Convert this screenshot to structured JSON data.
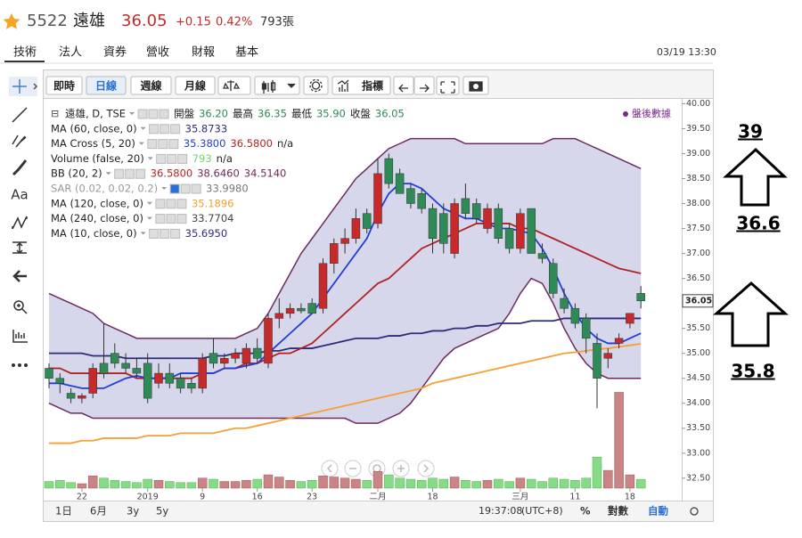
{
  "header": {
    "code": "5522",
    "name": "遠雄",
    "price": "36.05",
    "change": "+0.15",
    "percent": "0.42%",
    "volume": "793張"
  },
  "tabs": [
    "技術",
    "法人",
    "資券",
    "營收",
    "財報",
    "基本"
  ],
  "timestamp": "03/19 13:30",
  "toolbar": {
    "periods": [
      "即時",
      "日線",
      "週線",
      "月線"
    ],
    "indicator": "指標"
  },
  "sidebar": {
    "text_tool": "Aa"
  },
  "chart": {
    "type": "candlestick",
    "after_hours": "盤後數據",
    "up_color": "#c62a2a",
    "down_color": "#2f8a57",
    "legend": [
      {
        "label": "遠雄, D, TSE",
        "items": [
          {
            "text": "開盤",
            "color": "#222"
          },
          {
            "text": "36.20",
            "color": "#2f8a57"
          },
          {
            "text": "最高",
            "color": "#222"
          },
          {
            "text": "36.35",
            "color": "#2f8a57"
          },
          {
            "text": "最低",
            "color": "#222"
          },
          {
            "text": "35.90",
            "color": "#2f8a57"
          },
          {
            "text": "收盤",
            "color": "#222"
          },
          {
            "text": "36.05",
            "color": "#2f8a57"
          }
        ]
      },
      {
        "label": "MA (60, close, 0)",
        "items": [
          {
            "text": "35.8733",
            "color": "#2c2c7a"
          }
        ]
      },
      {
        "label": "MA Cross (5, 20)",
        "items": [
          {
            "text": "35.3800",
            "color": "#1f3fd6"
          },
          {
            "text": "36.5800",
            "color": "#b22222"
          },
          {
            "text": "n/a",
            "color": "#222"
          }
        ]
      },
      {
        "label": "Volume (false, 20)",
        "items": [
          {
            "text": "793",
            "color": "#6fd66f"
          },
          {
            "text": "n/a",
            "color": "#222"
          }
        ]
      },
      {
        "label": "BB (20, 2)",
        "items": [
          {
            "text": "36.5800",
            "color": "#b22222"
          },
          {
            "text": "38.6460",
            "color": "#6d2a5e"
          },
          {
            "text": "34.5140",
            "color": "#6d2a5e"
          }
        ]
      },
      {
        "label": "SAR (0.02, 0.02, 0.2)",
        "items": [
          {
            "text": "33.9980",
            "color": "#777"
          }
        ]
      },
      {
        "label": "MA (120, close, 0)",
        "items": [
          {
            "text": "35.1896",
            "color": "#f5a033"
          }
        ]
      },
      {
        "label": "MA (240, close, 0)",
        "items": [
          {
            "text": "33.7704",
            "color": "#444"
          }
        ]
      },
      {
        "label": "MA (10, close, 0)",
        "items": [
          {
            "text": "35.6950",
            "color": "#2c2c7a"
          }
        ]
      }
    ],
    "ylim": [
      32.3,
      40.15
    ],
    "yticks": [
      {
        "value": 32.5,
        "label": "32.50"
      },
      {
        "value": 33,
        "label": "33.00"
      },
      {
        "value": 33.5,
        "label": "33.50"
      },
      {
        "value": 34,
        "label": "34.00"
      },
      {
        "value": 34.5,
        "label": "34.50"
      },
      {
        "value": 35,
        "label": "35.00"
      },
      {
        "value": 35.5,
        "label": "35.50"
      },
      {
        "value": 36,
        "label": "36.00"
      },
      {
        "value": 36.5,
        "label": "36.50"
      },
      {
        "value": 37,
        "label": "37.00"
      },
      {
        "value": 37.5,
        "label": "37.50"
      },
      {
        "value": 38,
        "label": "38.00"
      },
      {
        "value": 38.5,
        "label": "38.50"
      },
      {
        "value": 39,
        "label": "39.00"
      },
      {
        "value": 39.5,
        "label": "39.50"
      },
      {
        "value": 40,
        "label": "40.00"
      }
    ],
    "price_tag": {
      "value": 36.05,
      "label": "36.05"
    },
    "categories": [
      null,
      null,
      null,
      "22",
      null,
      null,
      null,
      null,
      null,
      "2019",
      null,
      null,
      null,
      null,
      "9",
      null,
      null,
      null,
      null,
      "16",
      null,
      null,
      null,
      null,
      "23",
      null,
      null,
      null,
      null,
      null,
      "二月",
      null,
      null,
      null,
      null,
      "18",
      null,
      null,
      null,
      null,
      null,
      null,
      null,
      "三月",
      null,
      null,
      null,
      null,
      "11",
      null,
      null,
      null,
      null,
      "18",
      null
    ],
    "candles": [
      [
        34.7,
        34.8,
        34.3,
        34.5
      ],
      [
        34.5,
        34.6,
        34.2,
        34.4
      ],
      [
        34.2,
        34.3,
        34.0,
        34.1
      ],
      [
        34.1,
        34.2,
        34.0,
        34.15
      ],
      [
        34.2,
        34.8,
        34.1,
        34.7
      ],
      [
        34.8,
        35.6,
        34.5,
        34.6
      ],
      [
        35.0,
        35.2,
        34.7,
        34.8
      ],
      [
        34.8,
        35.0,
        34.6,
        34.7
      ],
      [
        34.7,
        34.9,
        34.5,
        34.6
      ],
      [
        34.8,
        35.0,
        34.0,
        34.1
      ],
      [
        34.4,
        34.8,
        34.3,
        34.6
      ],
      [
        34.6,
        34.8,
        34.3,
        34.4
      ],
      [
        34.5,
        34.6,
        34.2,
        34.3
      ],
      [
        34.4,
        34.5,
        34.2,
        34.3
      ],
      [
        34.3,
        35.0,
        34.2,
        34.9
      ],
      [
        35.0,
        35.3,
        34.7,
        34.8
      ],
      [
        34.8,
        35.0,
        34.7,
        34.9
      ],
      [
        34.9,
        35.1,
        34.8,
        35.0
      ],
      [
        34.8,
        35.2,
        34.7,
        35.1
      ],
      [
        35.1,
        35.3,
        34.8,
        34.9
      ],
      [
        34.8,
        35.8,
        34.7,
        35.7
      ],
      [
        35.7,
        36.1,
        35.5,
        35.8
      ],
      [
        35.8,
        36.0,
        35.7,
        35.9
      ],
      [
        35.9,
        36.0,
        35.8,
        35.85
      ],
      [
        36.0,
        36.1,
        35.8,
        35.8
      ],
      [
        35.9,
        36.9,
        35.8,
        36.8
      ],
      [
        36.8,
        37.3,
        36.6,
        37.2
      ],
      [
        37.2,
        37.5,
        37.0,
        37.3
      ],
      [
        37.3,
        37.9,
        37.2,
        37.7
      ],
      [
        37.8,
        37.9,
        37.4,
        37.5
      ],
      [
        37.6,
        38.9,
        37.5,
        38.6
      ],
      [
        38.9,
        39.0,
        38.3,
        38.4
      ],
      [
        38.6,
        38.7,
        38.2,
        38.2
      ],
      [
        38.3,
        38.4,
        37.9,
        38.0
      ],
      [
        38.2,
        38.3,
        37.8,
        37.9
      ],
      [
        37.9,
        38.0,
        37.0,
        37.3
      ],
      [
        37.8,
        38.0,
        37.0,
        37.2
      ],
      [
        37.0,
        38.1,
        36.9,
        38.0
      ],
      [
        38.1,
        38.4,
        37.7,
        37.8
      ],
      [
        38.0,
        38.1,
        37.6,
        37.7
      ],
      [
        37.5,
        38.0,
        37.4,
        37.9
      ],
      [
        37.9,
        38.0,
        37.2,
        37.3
      ],
      [
        37.5,
        37.6,
        37.0,
        37.1
      ],
      [
        37.1,
        37.9,
        37.0,
        37.8
      ],
      [
        37.9,
        37.9,
        37.0,
        37.0
      ],
      [
        37.0,
        37.2,
        36.8,
        36.9
      ],
      [
        36.8,
        36.9,
        36.1,
        36.2
      ],
      [
        36.1,
        36.3,
        35.8,
        35.9
      ],
      [
        35.9,
        36.0,
        35.5,
        35.6
      ],
      [
        35.7,
        35.8,
        35.0,
        35.3
      ],
      [
        35.2,
        35.4,
        33.9,
        34.5
      ],
      [
        34.9,
        35.1,
        34.7,
        35.0
      ],
      [
        35.2,
        35.4,
        35.1,
        35.3
      ],
      [
        35.6,
        35.8,
        35.5,
        35.8
      ],
      [
        36.2,
        36.35,
        35.9,
        36.05
      ]
    ],
    "band": {
      "fill": "#c9c9e4",
      "line_color": "#6d2a5e",
      "upper": [
        36.2,
        36.1,
        36.0,
        35.9,
        35.8,
        35.6,
        35.5,
        35.4,
        35.3,
        35.3,
        35.3,
        35.3,
        35.3,
        35.3,
        35.3,
        35.3,
        35.3,
        35.3,
        35.4,
        35.5,
        35.8,
        36.2,
        36.6,
        37.0,
        37.3,
        37.6,
        37.9,
        38.2,
        38.5,
        38.7,
        38.9,
        39.1,
        39.2,
        39.3,
        39.3,
        39.3,
        39.3,
        39.3,
        39.2,
        39.2,
        39.2,
        39.2,
        39.2,
        39.2,
        39.2,
        39.2,
        39.3,
        39.3,
        39.3,
        39.2,
        39.1,
        39.0,
        38.9,
        38.8,
        38.7
      ],
      "lower": [
        34.0,
        33.9,
        33.8,
        33.8,
        33.7,
        33.7,
        33.7,
        33.7,
        33.7,
        33.7,
        33.7,
        33.7,
        33.7,
        33.7,
        33.7,
        33.7,
        33.7,
        33.7,
        33.7,
        33.7,
        33.7,
        33.7,
        33.7,
        33.7,
        33.7,
        33.7,
        33.7,
        33.7,
        33.6,
        33.6,
        33.6,
        33.7,
        33.8,
        34.0,
        34.3,
        34.6,
        34.9,
        35.1,
        35.2,
        35.3,
        35.4,
        35.5,
        35.8,
        36.2,
        36.5,
        36.4,
        36.0,
        35.5,
        35.1,
        34.8,
        34.6,
        34.5,
        34.5,
        34.5,
        34.5
      ]
    },
    "lines": [
      {
        "color": "#f5a033",
        "values": [
          33.2,
          33.2,
          33.2,
          33.25,
          33.25,
          33.3,
          33.3,
          33.3,
          33.3,
          33.35,
          33.35,
          33.35,
          33.4,
          33.4,
          33.4,
          33.4,
          33.45,
          33.5,
          33.5,
          33.55,
          33.6,
          33.65,
          33.7,
          33.75,
          33.8,
          33.85,
          33.9,
          33.95,
          34.0,
          34.05,
          34.1,
          34.15,
          34.2,
          34.25,
          34.3,
          34.4,
          34.45,
          34.5,
          34.55,
          34.6,
          34.65,
          34.7,
          34.75,
          34.8,
          34.85,
          34.9,
          34.95,
          35.0,
          35.02,
          35.05,
          35.08,
          35.1,
          35.13,
          35.16,
          35.19
        ]
      },
      {
        "color": "#2c2c7a",
        "values": [
          35.0,
          35.0,
          35.0,
          35.0,
          34.95,
          34.95,
          34.95,
          34.9,
          34.9,
          34.9,
          34.9,
          34.9,
          34.9,
          34.9,
          34.9,
          34.95,
          34.95,
          35.0,
          35.0,
          35.0,
          35.05,
          35.05,
          35.1,
          35.1,
          35.1,
          35.15,
          35.2,
          35.25,
          35.3,
          35.3,
          35.3,
          35.35,
          35.35,
          35.4,
          35.4,
          35.45,
          35.45,
          35.5,
          35.5,
          35.55,
          35.55,
          35.6,
          35.6,
          35.6,
          35.65,
          35.65,
          35.65,
          35.7,
          35.7,
          35.7,
          35.7,
          35.7,
          35.7,
          35.7,
          35.7
        ]
      },
      {
        "color": "#b22222",
        "values": [
          34.7,
          34.7,
          34.6,
          34.6,
          34.6,
          34.6,
          34.6,
          34.6,
          34.5,
          34.5,
          34.5,
          34.5,
          34.5,
          34.5,
          34.6,
          34.6,
          34.7,
          34.7,
          34.8,
          34.8,
          34.9,
          35.0,
          35.0,
          35.1,
          35.2,
          35.4,
          35.6,
          35.8,
          36.0,
          36.2,
          36.4,
          36.5,
          36.7,
          36.9,
          37.1,
          37.2,
          37.3,
          37.4,
          37.5,
          37.6,
          37.6,
          37.6,
          37.6,
          37.5,
          37.5,
          37.4,
          37.3,
          37.2,
          37.1,
          37.0,
          36.9,
          36.8,
          36.7,
          36.65,
          36.6
        ]
      },
      {
        "color": "#1f3fd6",
        "values": [
          34.4,
          34.4,
          34.35,
          34.3,
          34.3,
          34.3,
          34.4,
          34.5,
          34.55,
          34.5,
          34.5,
          34.5,
          34.6,
          34.6,
          34.6,
          34.6,
          34.7,
          34.7,
          34.75,
          34.8,
          35.0,
          35.2,
          35.4,
          35.6,
          35.8,
          36.1,
          36.4,
          36.7,
          37.0,
          37.3,
          37.8,
          38.2,
          38.4,
          38.4,
          38.3,
          38.1,
          37.9,
          37.8,
          37.7,
          37.7,
          37.6,
          37.5,
          37.5,
          37.45,
          37.4,
          37.1,
          36.7,
          36.2,
          35.8,
          35.5,
          35.3,
          35.2,
          35.2,
          35.3,
          35.4
        ]
      }
    ],
    "volume": {
      "up_color": "#c98585",
      "down_color": "#86dc86",
      "ylim": [
        0,
        9000
      ],
      "values": [
        600,
        700,
        500,
        400,
        1100,
        900,
        700,
        600,
        500,
        800,
        700,
        600,
        500,
        500,
        900,
        800,
        600,
        600,
        700,
        800,
        1200,
        1000,
        700,
        600,
        700,
        1100,
        1000,
        900,
        800,
        700,
        1500,
        1200,
        900,
        800,
        700,
        900,
        800,
        1000,
        700,
        600,
        700,
        800,
        600,
        900,
        800,
        600,
        900,
        800,
        700,
        900,
        2800,
        1600,
        8640,
        1200,
        793
      ]
    }
  },
  "bottom_bar": {
    "ranges": [
      "1日",
      "6月",
      "3y",
      "5y"
    ],
    "clock": "19:37:08",
    "tz": "(UTC+8)",
    "options": [
      "%",
      "對數",
      "自動"
    ]
  },
  "annotations": [
    "39",
    "36.6",
    "35.8"
  ]
}
